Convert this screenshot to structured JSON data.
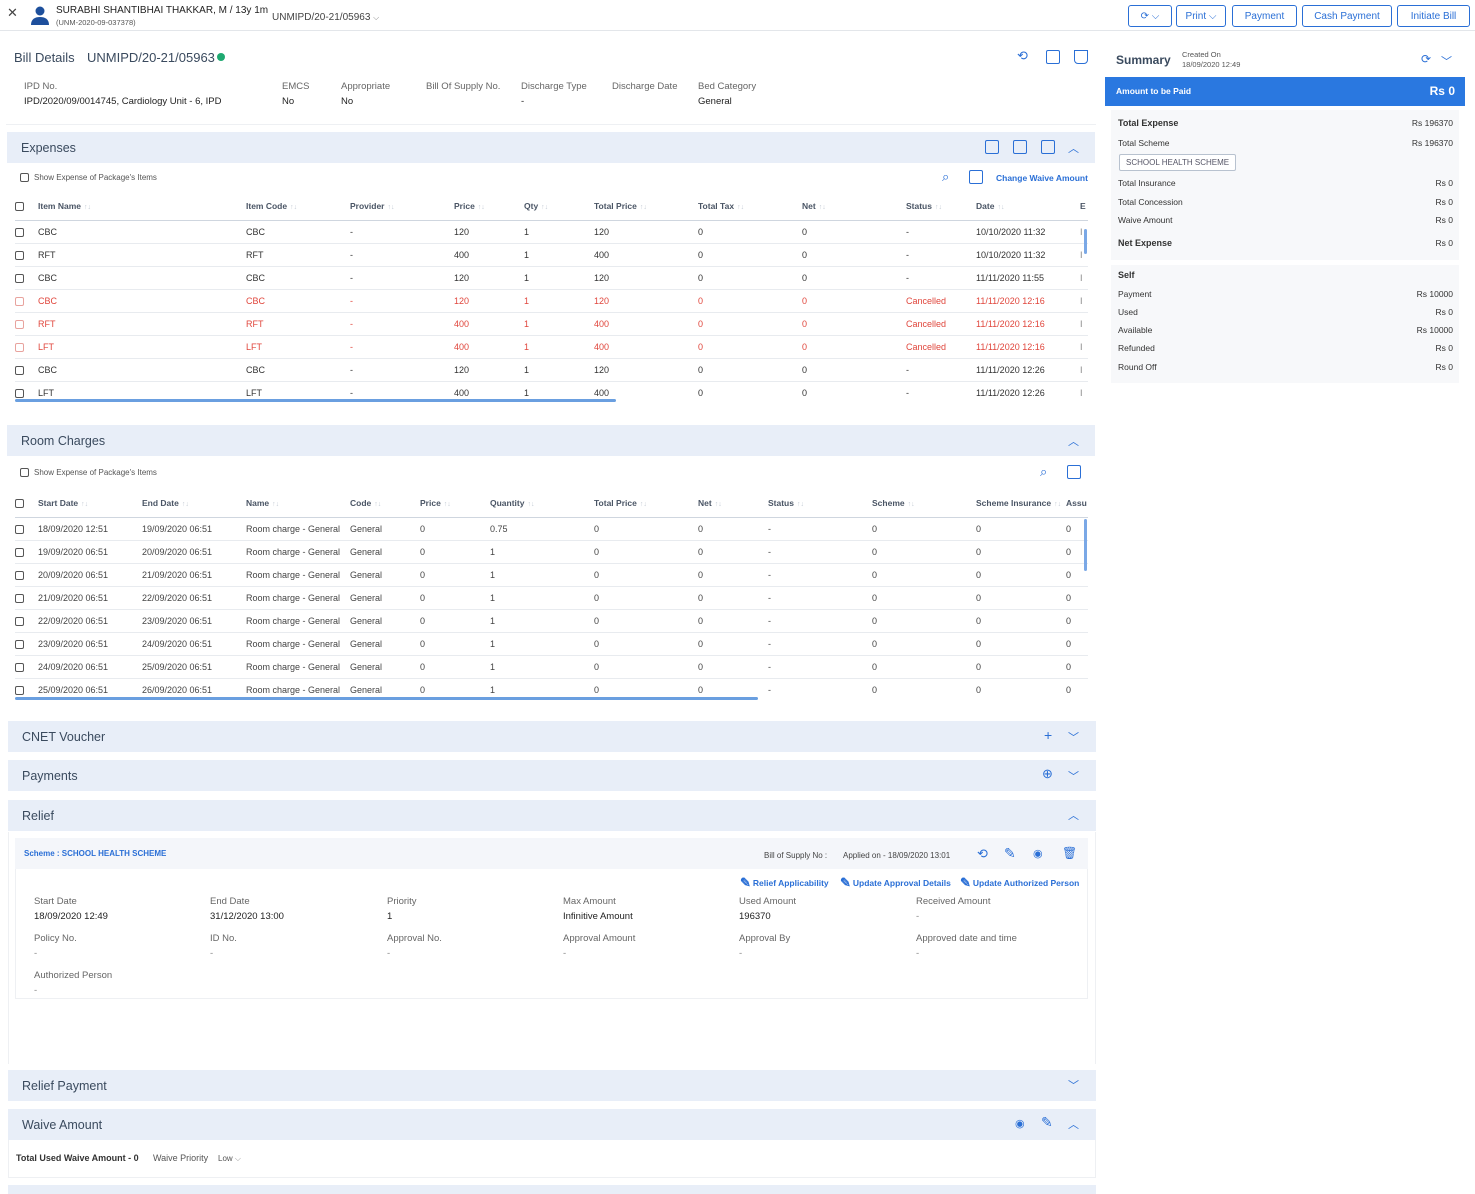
{
  "patient": {
    "name": "SURABHI SHANTIBHAI THAKKAR, M / 13y 1m",
    "uhid": "(UNM-2020-09-037378)",
    "bill_ref": "UNMIPD/20-21/05963"
  },
  "toolbar": {
    "print": "Print",
    "payment": "Payment",
    "cash_payment": "Cash Payment",
    "initiate_bill": "Initiate Bill"
  },
  "bill": {
    "title": "Bill Details",
    "number": "UNMIPD/20-21/05963",
    "status_color": "#1fa971",
    "fields": [
      {
        "label": "IPD No.",
        "value": "IPD/2020/09/0014745, Cardiology Unit - 6, IPD"
      },
      {
        "label": "EMCS",
        "value": "No"
      },
      {
        "label": "Appropriate",
        "value": "No"
      },
      {
        "label": "Bill Of Supply No.",
        "value": ""
      },
      {
        "label": "Discharge Type",
        "value": "-"
      },
      {
        "label": "Discharge Date",
        "value": ""
      },
      {
        "label": "Bed Category",
        "value": "General"
      }
    ]
  },
  "expenses": {
    "title": "Expenses",
    "show_pkg": "Show Expense of Package's Items",
    "change_waive": "Change Waive Amount",
    "headers": [
      "Item Name",
      "Item Code",
      "Provider",
      "Price",
      "Qty",
      "Total Price",
      "Total Tax",
      "Net",
      "Status",
      "Date",
      "E"
    ],
    "rows": [
      [
        "CBC",
        "CBC",
        "-",
        "120",
        "1",
        "120",
        "0",
        "0",
        "-",
        "10/10/2020 11:32"
      ],
      [
        "RFT",
        "RFT",
        "-",
        "400",
        "1",
        "400",
        "0",
        "0",
        "-",
        "10/10/2020 11:32"
      ],
      [
        "CBC",
        "CBC",
        "-",
        "120",
        "1",
        "120",
        "0",
        "0",
        "-",
        "11/11/2020 11:55"
      ],
      [
        "CBC",
        "CBC",
        "-",
        "120",
        "1",
        "120",
        "0",
        "0",
        "Cancelled",
        "11/11/2020 12:16"
      ],
      [
        "RFT",
        "RFT",
        "-",
        "400",
        "1",
        "400",
        "0",
        "0",
        "Cancelled",
        "11/11/2020 12:16"
      ],
      [
        "LFT",
        "LFT",
        "-",
        "400",
        "1",
        "400",
        "0",
        "0",
        "Cancelled",
        "11/11/2020 12:16"
      ],
      [
        "CBC",
        "CBC",
        "-",
        "120",
        "1",
        "120",
        "0",
        "0",
        "-",
        "11/11/2020 12:26"
      ],
      [
        "LFT",
        "LFT",
        "-",
        "400",
        "1",
        "400",
        "0",
        "0",
        "-",
        "11/11/2020 12:26"
      ]
    ]
  },
  "room": {
    "title": "Room Charges",
    "show_pkg": "Show Expense of Package's Items",
    "headers": [
      "Start Date",
      "End Date",
      "Name",
      "Code",
      "Price",
      "Quantity",
      "Total Price",
      "Net",
      "Status",
      "Scheme",
      "Scheme Insurance",
      "Assu"
    ],
    "rows": [
      [
        "18/09/2020 12:51",
        "19/09/2020 06:51",
        "Room charge - General",
        "General",
        "0",
        "0.75",
        "0",
        "0",
        "-",
        "0",
        "0",
        "0"
      ],
      [
        "19/09/2020 06:51",
        "20/09/2020 06:51",
        "Room charge - General",
        "General",
        "0",
        "1",
        "0",
        "0",
        "-",
        "0",
        "0",
        "0"
      ],
      [
        "20/09/2020 06:51",
        "21/09/2020 06:51",
        "Room charge - General",
        "General",
        "0",
        "1",
        "0",
        "0",
        "-",
        "0",
        "0",
        "0"
      ],
      [
        "21/09/2020 06:51",
        "22/09/2020 06:51",
        "Room charge - General",
        "General",
        "0",
        "1",
        "0",
        "0",
        "-",
        "0",
        "0",
        "0"
      ],
      [
        "22/09/2020 06:51",
        "23/09/2020 06:51",
        "Room charge - General",
        "General",
        "0",
        "1",
        "0",
        "0",
        "-",
        "0",
        "0",
        "0"
      ],
      [
        "23/09/2020 06:51",
        "24/09/2020 06:51",
        "Room charge - General",
        "General",
        "0",
        "1",
        "0",
        "0",
        "-",
        "0",
        "0",
        "0"
      ],
      [
        "24/09/2020 06:51",
        "25/09/2020 06:51",
        "Room charge - General",
        "General",
        "0",
        "1",
        "0",
        "0",
        "-",
        "0",
        "0",
        "0"
      ],
      [
        "25/09/2020 06:51",
        "26/09/2020 06:51",
        "Room charge - General",
        "General",
        "0",
        "1",
        "0",
        "0",
        "-",
        "0",
        "0",
        "0"
      ]
    ]
  },
  "cnet": {
    "title": "CNET Voucher"
  },
  "payments": {
    "title": "Payments"
  },
  "relief": {
    "title": "Relief",
    "scheme": "Scheme : SCHOOL HEALTH SCHEME",
    "bill_supply": "Bill of Supply No :",
    "applied_on": "Applied on - 18/09/2020 13:01",
    "relief_applicability": "Relief Applicability",
    "update_approval": "Update Approval Details",
    "update_authorized": "Update Authorized Person",
    "fields": [
      {
        "label": "Start Date",
        "value": "18/09/2020 12:49"
      },
      {
        "label": "End Date",
        "value": "31/12/2020 13:00"
      },
      {
        "label": "Priority",
        "value": "1"
      },
      {
        "label": "Max Amount",
        "value": "Infinitive Amount"
      },
      {
        "label": "Used Amount",
        "value": "196370"
      },
      {
        "label": "Received Amount",
        "value": "-"
      },
      {
        "label": "Policy No.",
        "value": "-"
      },
      {
        "label": "ID No.",
        "value": "-"
      },
      {
        "label": "Approval No.",
        "value": "-"
      },
      {
        "label": "Approval Amount",
        "value": "-"
      },
      {
        "label": "Approval By",
        "value": "-"
      },
      {
        "label": "Approved date and time",
        "value": "-"
      },
      {
        "label": "Authorized Person",
        "value": "-"
      }
    ]
  },
  "relief_payment": {
    "title": "Relief Payment"
  },
  "waive": {
    "title": "Waive Amount",
    "total": "Total Used Waive Amount - 0",
    "priority_label": "Waive Priority",
    "priority_value": "Low"
  },
  "summary": {
    "title": "Summary",
    "created_label": "Created On",
    "created_value": "18/09/2020 12:49",
    "amount_label": "Amount to be Paid",
    "amount_value": "Rs 0",
    "total_expense_label": "Total Expense",
    "total_expense": "Rs 196370",
    "total_scheme_label": "Total Scheme",
    "total_scheme": "Rs 196370",
    "scheme_tag": "SCHOOL HEALTH SCHEME",
    "total_insurance_label": "Total Insurance",
    "total_insurance": "Rs 0",
    "total_concession_label": "Total Concession",
    "total_concession": "Rs 0",
    "waive_label": "Waive Amount",
    "waive": "Rs 0",
    "net_label": "Net Expense",
    "net": "Rs 0",
    "self_label": "Self",
    "payment_label": "Payment",
    "payment": "Rs 10000",
    "used_label": "Used",
    "used": "Rs 0",
    "available_label": "Available",
    "available": "Rs 10000",
    "refunded_label": "Refunded",
    "refunded": "Rs 0",
    "roundoff_label": "Round Off",
    "roundoff": "Rs 0"
  }
}
